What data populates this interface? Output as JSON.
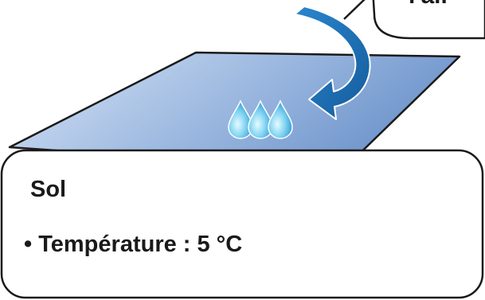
{
  "air_box": {
    "label_partial": "l'air"
  },
  "ground_box": {
    "title": "Sol",
    "bullet": "• Température : 5 °C"
  },
  "drops": {
    "count": 3
  },
  "colors": {
    "plane_light": "#c8d9ef",
    "plane_dark": "#6f95cc",
    "arrow_blue": "#1f6fb8",
    "drop_light": "#c9f1ff",
    "drop_dark": "#1a9bd6",
    "outline": "#1a1a1a"
  }
}
